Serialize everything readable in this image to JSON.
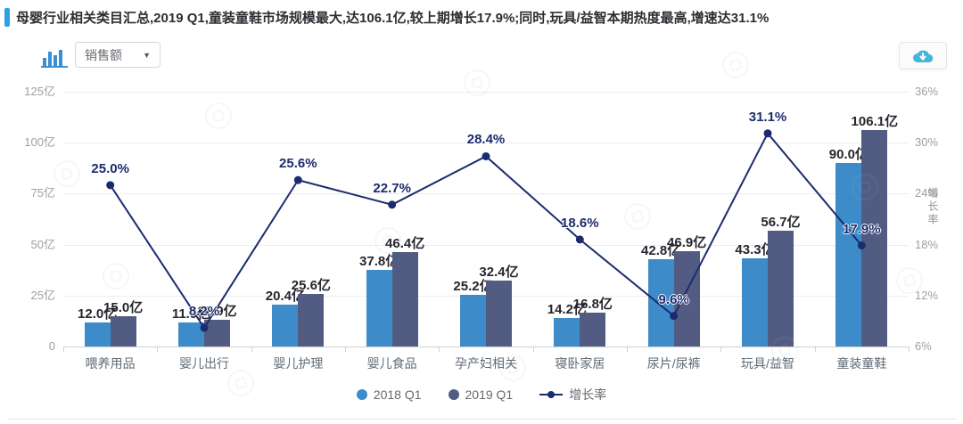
{
  "header": {
    "title": "母婴行业相关类目汇总,2019 Q1,童装童鞋市场规模最大,达106.1亿,较上期增长17.9%;同时,玩具/益智本期热度最高,增速达31.1%",
    "accent_color": "#2aa3e3"
  },
  "toolbar": {
    "chart_type_icon": "bar-chart-icon",
    "metric_select": {
      "value": "销售额",
      "caret": "▼"
    },
    "download_button": {
      "icon": "cloud-download-icon"
    }
  },
  "chart_data": {
    "type": "bar+line",
    "categories": [
      "喂养用品",
      "婴儿出行",
      "婴儿护理",
      "婴儿食品",
      "孕产妇相关",
      "寝卧家居",
      "尿片/尿裤",
      "玩具/益智",
      "童装童鞋"
    ],
    "series": [
      {
        "name": "2018 Q1",
        "type": "bar",
        "color": "#3d8cc9",
        "values": [
          12.0,
          11.9,
          20.4,
          37.8,
          25.2,
          14.2,
          42.8,
          43.3,
          90.0
        ],
        "labels": [
          "12.0亿",
          "11.9亿",
          "20.4亿",
          "37.8亿",
          "25.2亿",
          "14.2亿",
          "42.8亿",
          "43.3亿",
          "90.0亿"
        ]
      },
      {
        "name": "2019 Q1",
        "type": "bar",
        "color": "#525c82",
        "values": [
          15.0,
          12.9,
          25.6,
          46.4,
          32.4,
          16.8,
          46.9,
          56.7,
          106.1
        ],
        "labels": [
          "15.0亿",
          "12.9亿",
          "25.6亿",
          "46.4亿",
          "32.4亿",
          "16.8亿",
          "46.9亿",
          "56.7亿",
          "106.1亿"
        ]
      },
      {
        "name": "增长率",
        "type": "line",
        "color": "#1c2b6e",
        "values": [
          25.0,
          8.2,
          25.6,
          22.7,
          28.4,
          18.6,
          9.6,
          31.1,
          17.9
        ],
        "labels": [
          "25.0%",
          "8.2%",
          "25.6%",
          "22.7%",
          "28.4%",
          "18.6%",
          "9.6%",
          "31.1%",
          "17.9%"
        ]
      }
    ],
    "left_axis": {
      "ticks_top_to_bottom": [
        "125亿",
        "100亿",
        "75亿",
        "50亿",
        "25亿",
        "0"
      ],
      "min": 0,
      "max": 125,
      "unit": "亿"
    },
    "right_axis": {
      "ticks_top_to_bottom": [
        "36%",
        "30%",
        "24%",
        "18%",
        "12%",
        "6%"
      ],
      "min": 6,
      "max": 36,
      "title": "增长率",
      "unit": "%"
    },
    "grid": true,
    "legend_position": "bottom"
  }
}
